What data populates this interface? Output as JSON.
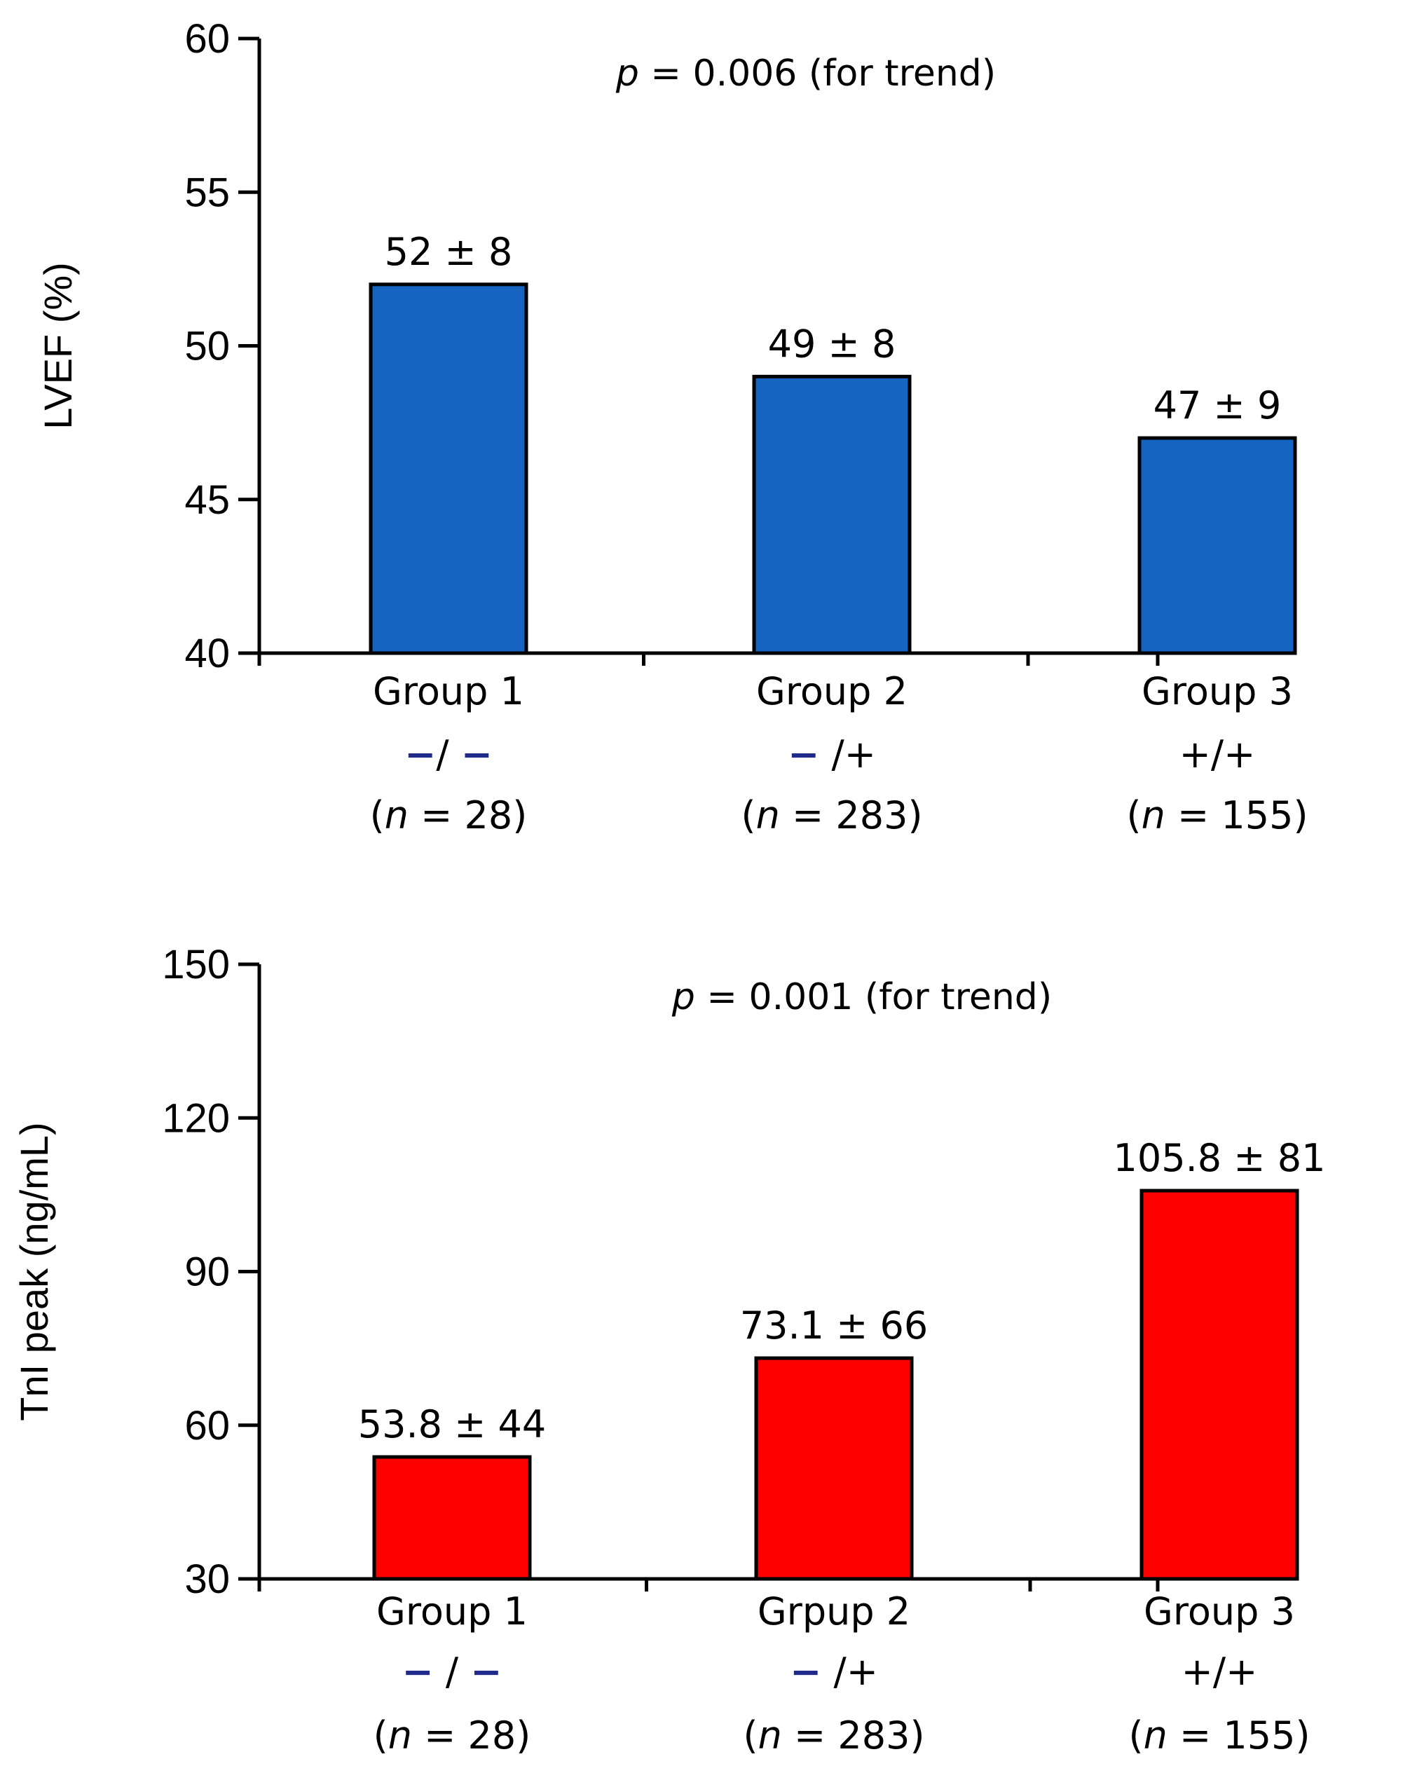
{
  "chart_data": [
    {
      "type": "bar",
      "title": "",
      "annotation": {
        "p_symbol": "p",
        "p_text": " = 0.006 (for trend)"
      },
      "ylabel": "LVEF (%)",
      "xlabel": "",
      "ylim": [
        40,
        60
      ],
      "yticks": [
        "40",
        "45",
        "50",
        "55",
        "60"
      ],
      "bar_color": "#1565c0",
      "categories": [
        {
          "group": "Group 1",
          "sign": "−/ −",
          "n_prefix": "(",
          "n_var": "n",
          "n_suffix": " = 28)"
        },
        {
          "group": "Group 2",
          "sign": "− /+",
          "n_prefix": "(",
          "n_var": "n",
          "n_suffix": " = 283)"
        },
        {
          "group": "Group 3",
          "sign": "+/+",
          "n_prefix": "(",
          "n_var": "n",
          "n_suffix": " = 155)"
        }
      ],
      "values": [
        52,
        49,
        47
      ],
      "value_labels": [
        "52 ± 8",
        "49 ± 8",
        "47 ± 9"
      ]
    },
    {
      "type": "bar",
      "title": "",
      "annotation": {
        "p_symbol": "p",
        "p_text": " = 0.001 (for trend)"
      },
      "ylabel": "TnI peak  (ng/mL)",
      "xlabel": "",
      "ylim": [
        30,
        150
      ],
      "yticks": [
        "30",
        "60",
        "90",
        "120",
        "150"
      ],
      "bar_color": "#ff0000",
      "categories": [
        {
          "group": "Group 1",
          "sign": "− / −",
          "n_prefix": "(",
          "n_var": "n",
          "n_suffix": " = 28)"
        },
        {
          "group": "Grpup 2",
          "sign": "− /+",
          "n_prefix": "(",
          "n_var": "n",
          "n_suffix": " = 283)"
        },
        {
          "group": "Group 3",
          "sign": "+/+",
          "n_prefix": "(",
          "n_var": "n",
          "n_suffix": " = 155)"
        }
      ],
      "values": [
        53.8,
        73.1,
        105.8
      ],
      "value_labels": [
        "53.8 ± 44",
        "73.1 ± 66",
        "105.8 ± 81"
      ]
    }
  ]
}
